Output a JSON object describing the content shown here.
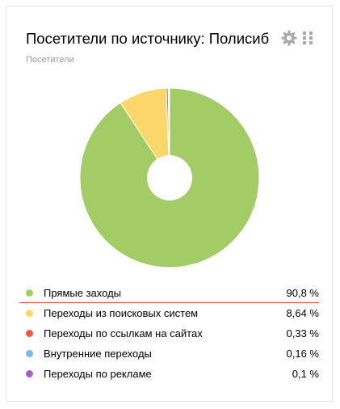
{
  "widget": {
    "title": "Посетители по источнику: Полисиб",
    "subtitle": "Посетители",
    "settings_icon": "gear-icon",
    "drag_icon": "drag-handle-icon"
  },
  "chart_data": {
    "type": "pie",
    "donut": true,
    "slices": [
      {
        "label": "Прямые заходы",
        "value": 90.8,
        "display": "90,8 %",
        "color": "#a3cc66"
      },
      {
        "label": "Переходы из поисковых систем",
        "value": 8.64,
        "display": "8,64 %",
        "color": "#fbd66b"
      },
      {
        "label": "Переходы по ссылкам на сайтах",
        "value": 0.33,
        "display": "0,33 %",
        "color": "#f0573c"
      },
      {
        "label": "Внутренние переходы",
        "value": 0.16,
        "display": "0,16 %",
        "color": "#7fb7ea"
      },
      {
        "label": "Переходы по рекламе",
        "value": 0.1,
        "display": "0,1 %",
        "color": "#a760c4"
      }
    ],
    "selected_index": 0,
    "selected_color": "#f2413d"
  }
}
